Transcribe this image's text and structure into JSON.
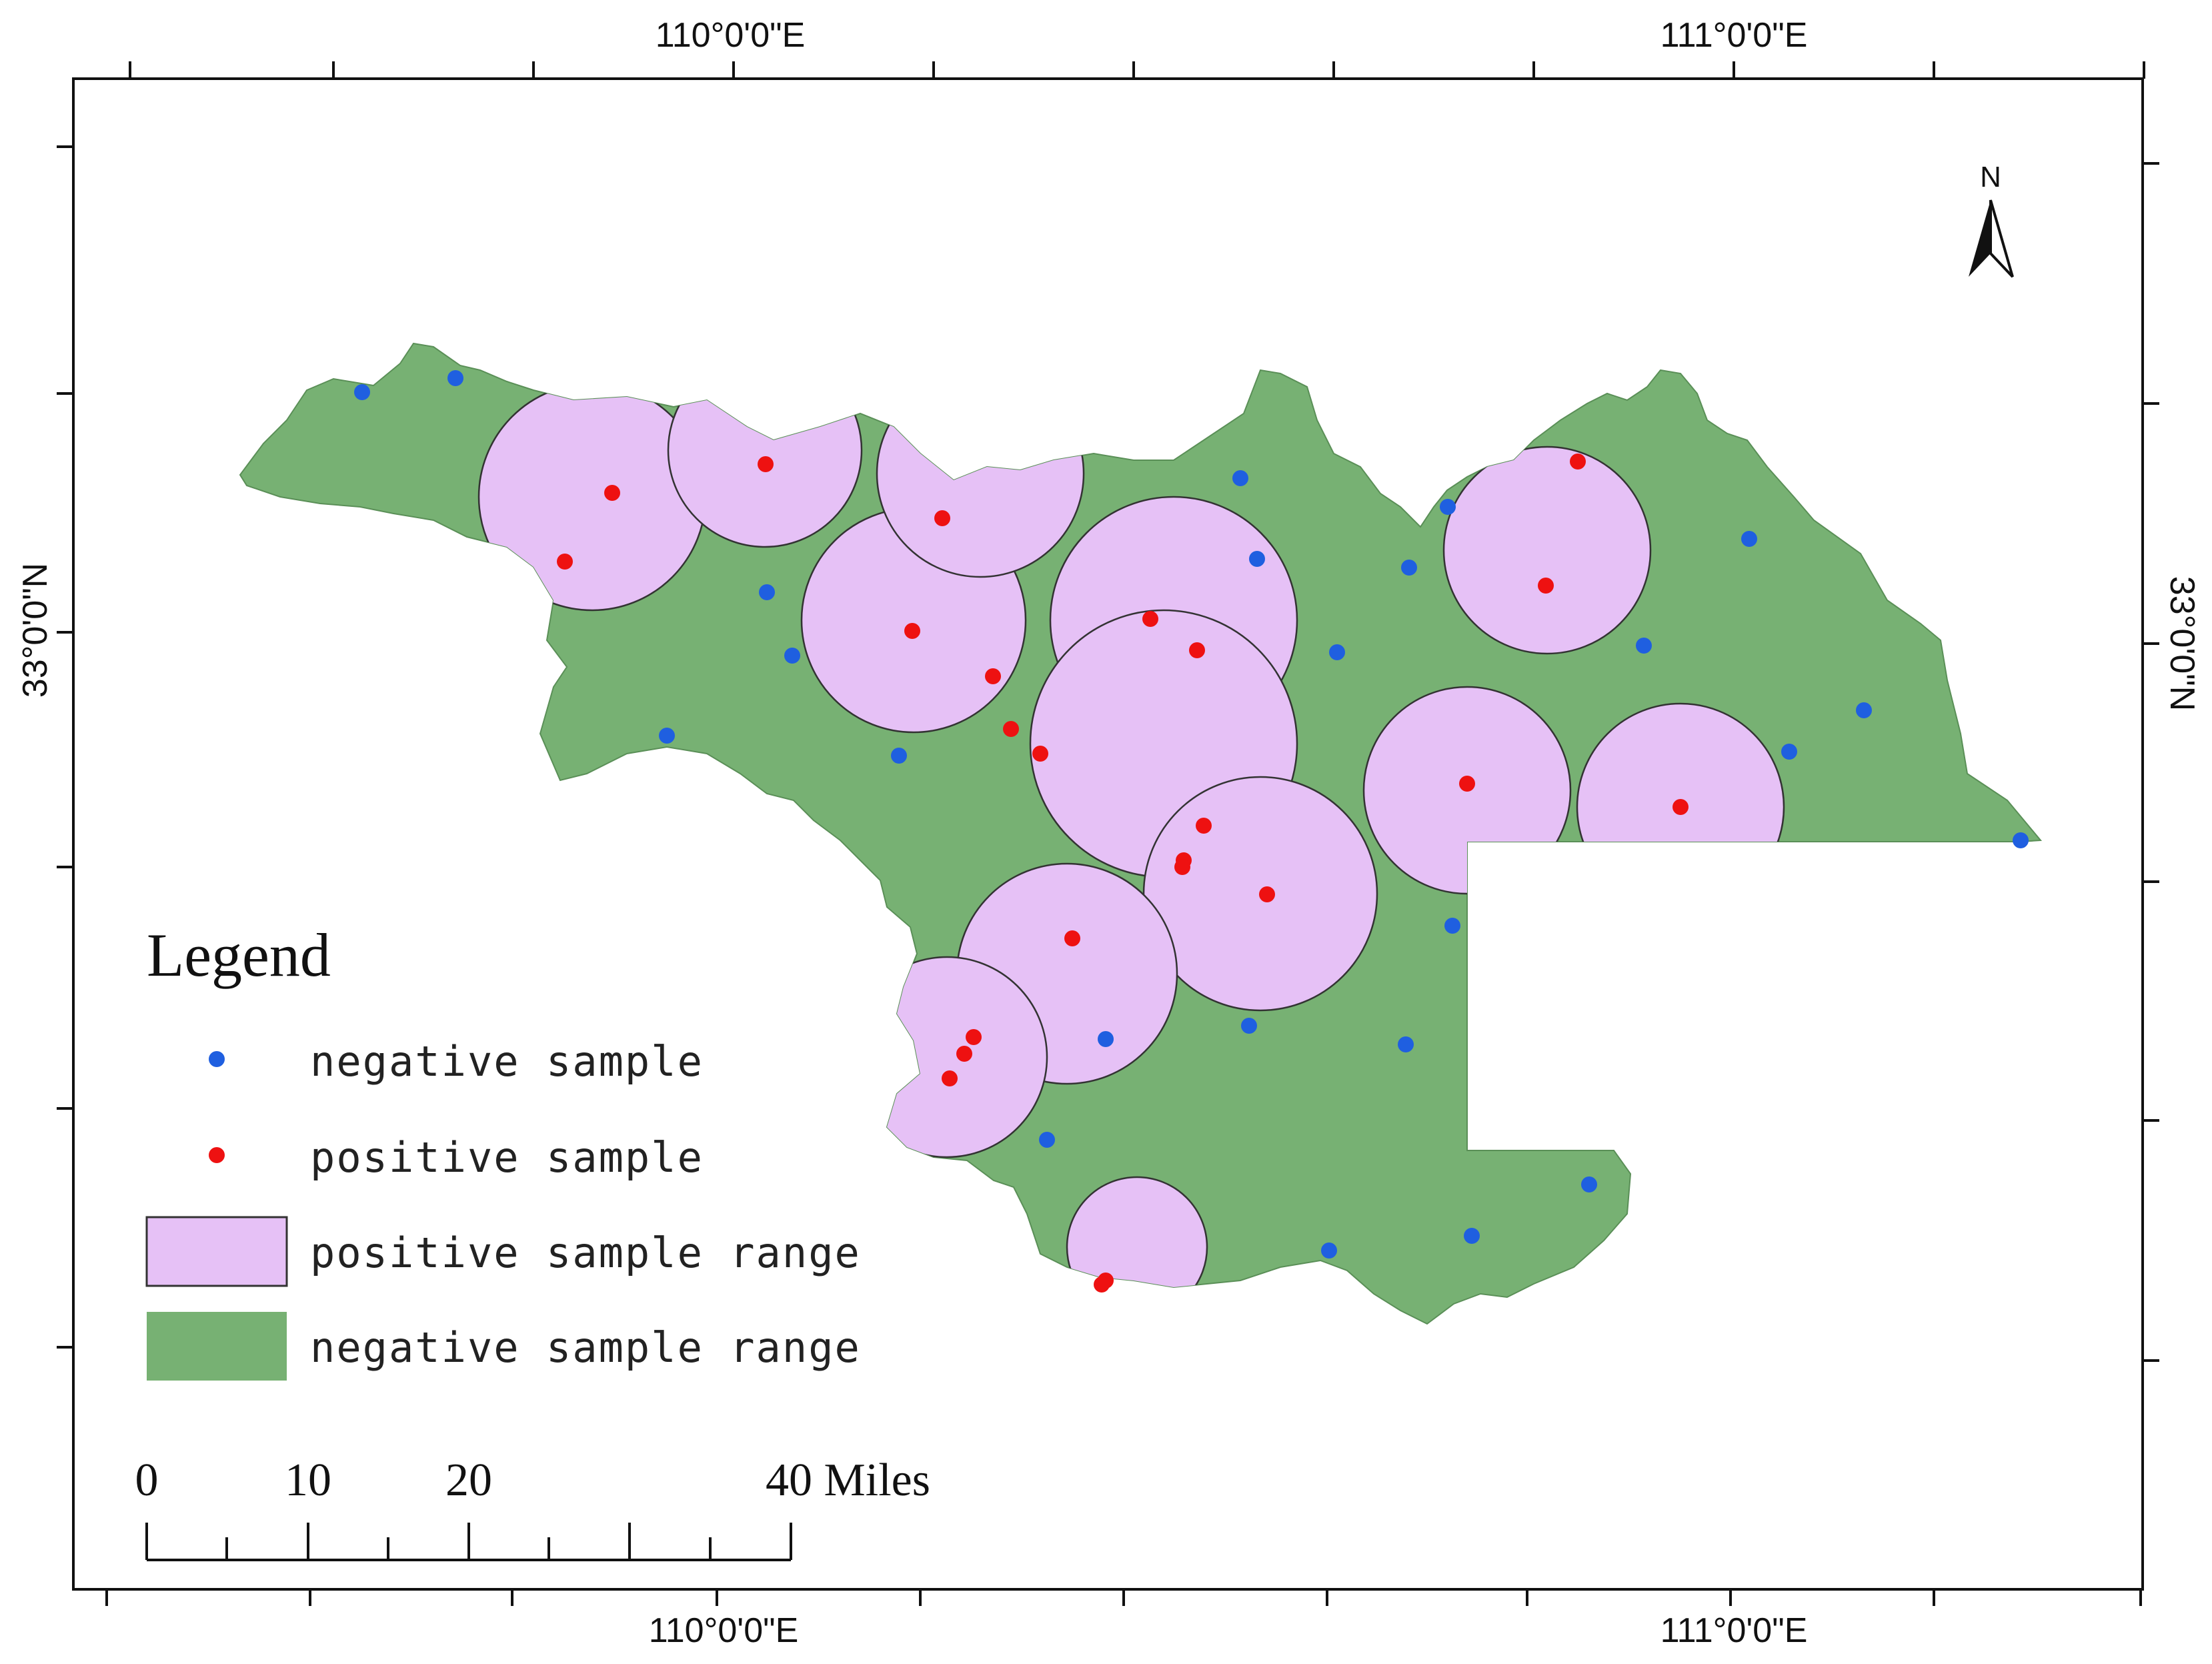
{
  "map": {
    "coords": {
      "top": [
        "110°0'0\"E",
        "111°0'0\"E"
      ],
      "bottom": [
        "110°0'0\"E",
        "111°0'0\"E"
      ],
      "left": "33°0'0\"N",
      "right": "33°0'0\"N"
    },
    "north_label": "N",
    "colors": {
      "negative_range": "#77b173",
      "positive_range": "#e6c1f6",
      "negative_point": "#1f5fe0",
      "positive_point": "#ee1111"
    }
  },
  "legend": {
    "title": "Legend",
    "items": [
      {
        "label": "negative sample",
        "symbol": "point",
        "color": "#1f5fe0"
      },
      {
        "label": "positive sample",
        "symbol": "point",
        "color": "#ee1111"
      },
      {
        "label": "positive sample range",
        "symbol": "box",
        "color": "#e6c1f6"
      },
      {
        "label": "negative sample range",
        "symbol": "box",
        "color": "#77b173"
      }
    ]
  },
  "scalebar": {
    "labels": [
      "0",
      "10",
      "20",
      "40 Miles"
    ]
  }
}
